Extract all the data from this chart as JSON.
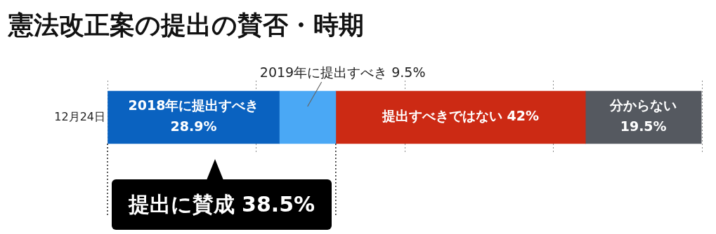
{
  "chart_data": {
    "type": "bar",
    "orientation": "horizontal",
    "stacked": true,
    "title": "憲法改正案の提出の賛否・時期",
    "categories": [
      "12月24日"
    ],
    "series": [
      {
        "color": "#0a62c0",
        "values": [
          28.9
        ],
        "value_labels": [
          "2018年に提出すべき 28.9%"
        ]
      },
      {
        "color": "#4aa8f5",
        "values": [
          9.5
        ],
        "value_labels": [
          "2019年に提出すべき 9.5%"
        ]
      },
      {
        "color": "#cc2a14",
        "values": [
          42
        ],
        "value_labels": [
          "提出すべきではない 42%"
        ]
      },
      {
        "color": "#555960",
        "values": [
          19.5
        ],
        "value_labels": [
          "分からない19.5%"
        ]
      }
    ],
    "xlim": [
      0,
      100
    ],
    "xticks": [
      {
        "value": 0,
        "label": null
      },
      {
        "value": 25,
        "label": null
      },
      {
        "value": 50,
        "label": null
      },
      {
        "value": 75,
        "label": null
      },
      {
        "value": 100,
        "label": null
      }
    ],
    "tick_labels": "y",
    "grid": "x",
    "legend": false,
    "annotations": [
      "提出に賛成 38.5%"
    ]
  }
}
